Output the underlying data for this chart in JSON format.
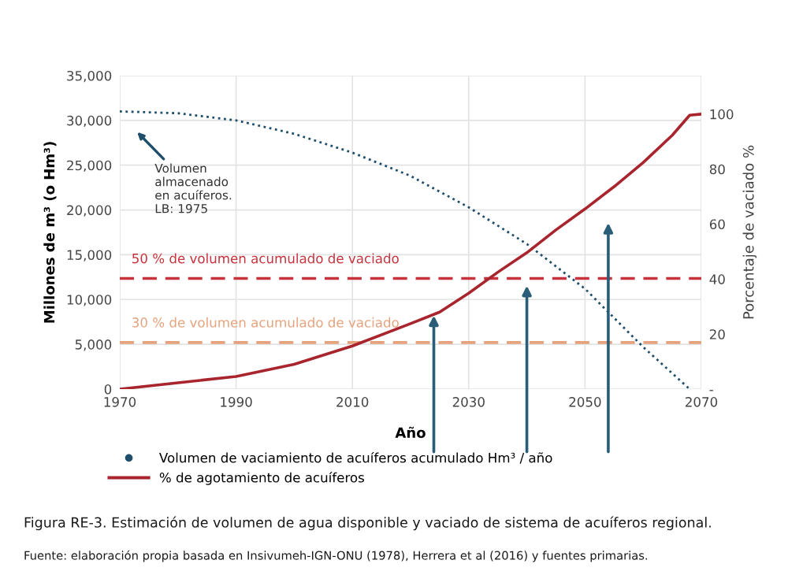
{
  "chart_data": {
    "type": "line",
    "title": "Figura RE-3. Estimación de volumen de agua disponible y vaciado de sistema de acuíferos regional.",
    "xlabel": "Año",
    "ylabel": "Millones de m³ (o Hm³)",
    "y2label": "Porcentaje de vaciado %",
    "series": [
      {
        "name": "Volumen de vaciamiento de acuíferos acumulado Hm³ / año",
        "color": "#1f4e6b",
        "line_style": "dotted",
        "axis": "y",
        "x": [
          1970,
          1980,
          1990,
          2000,
          2010,
          2020,
          2030,
          2040,
          2050,
          2060,
          2068
        ],
        "values": [
          31000,
          30800,
          30000,
          28500,
          26400,
          23800,
          20300,
          16200,
          11200,
          4700,
          0
        ]
      },
      {
        "name": "% de agotamiento de acuíferos",
        "color": "#a8252e",
        "line_style": "solid",
        "axis": "y2",
        "x": [
          1970,
          1980,
          1990,
          2000,
          2010,
          2020,
          2025,
          2030,
          2035,
          2040,
          2045,
          2050,
          2055,
          2060,
          2065,
          2068,
          2070
        ],
        "values": [
          0,
          2.3,
          4.6,
          9,
          15.7,
          23.8,
          28,
          34.9,
          42.5,
          49.6,
          57.9,
          65.5,
          73.6,
          82.4,
          92.3,
          99.6,
          100
        ]
      }
    ],
    "xlim": [
      1970,
      2070
    ],
    "xticks": [
      1970,
      1990,
      2010,
      2030,
      2050,
      2070
    ],
    "ylim": [
      0,
      35000
    ],
    "yticks": [
      {
        "value": 0,
        "label": "0"
      },
      {
        "value": 5000,
        "label": "5,000"
      },
      {
        "value": 10000,
        "label": "10,000"
      },
      {
        "value": 15000,
        "label": "15,000"
      },
      {
        "value": 20000,
        "label": "20,000"
      },
      {
        "value": 25000,
        "label": "25,000"
      },
      {
        "value": 30000,
        "label": "30,000"
      },
      {
        "value": 35000,
        "label": "35,000"
      }
    ],
    "y2lim": [
      0,
      114
    ],
    "y2ticks": [
      {
        "value": 0,
        "label": "-"
      },
      20,
      40,
      60,
      80,
      100
    ],
    "ref_lines": [
      {
        "axis": "y",
        "value": 12350,
        "label": "50 % de volumen acumulado de vaciado",
        "color": "#c8323c",
        "line_style": "dashed"
      },
      {
        "axis": "y",
        "value": 5200,
        "label": "30 % de volumen acumulado de vaciado",
        "color": "#e6a27c",
        "line_style": "dashed"
      }
    ],
    "annotations": [
      "Volumen\nalmacenado\nen acuíferos.\nLB: 1975",
      "Fuente: elaboración propia basada en Insivumeh-IGN-ONU (1978), Herrera et al (2016) y fuentes primarias."
    ],
    "grid": true,
    "legend": "bottom"
  }
}
